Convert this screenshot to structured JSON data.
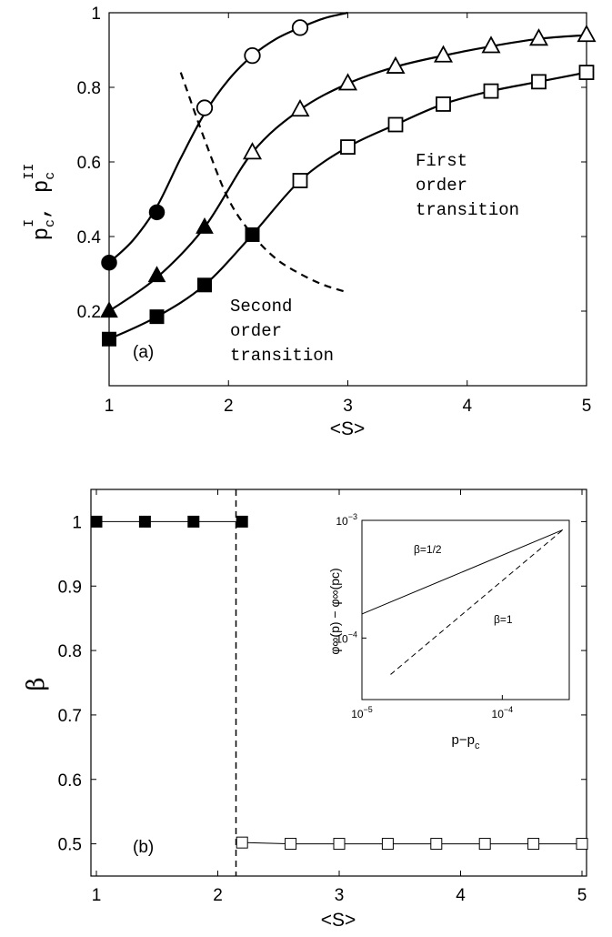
{
  "chart_data": [
    {
      "panel": "(a)",
      "type": "line",
      "xlabel": "<S>",
      "ylabel_main": "p",
      "ylabel_sub1": "c",
      "ylabel_sup1": "I",
      "ylabel_sep": ", ",
      "ylabel_sub2": "c",
      "ylabel_sup2": "II",
      "xlim": [
        1,
        5
      ],
      "ylim": [
        0,
        1
      ],
      "xticks": [
        1,
        2,
        3,
        4,
        5
      ],
      "yticks": [
        0.2,
        0.4,
        0.6,
        0.8,
        1
      ],
      "ytick_labels": [
        "0.2",
        "0.4",
        "0.6",
        "0.8",
        "1"
      ],
      "series": [
        {
          "marker": "circle",
          "curve_x": [
            1.0,
            1.2,
            1.4,
            1.6,
            1.8,
            2.0,
            2.2,
            2.4,
            2.6,
            2.8,
            3.0
          ],
          "curve_y": [
            0.33,
            0.39,
            0.48,
            0.61,
            0.73,
            0.82,
            0.885,
            0.93,
            0.96,
            0.985,
            1.0
          ],
          "filled_x": [
            1.0,
            1.4
          ],
          "filled_y": [
            0.33,
            0.465
          ],
          "open_x": [
            1.8,
            2.2,
            2.6
          ],
          "open_y": [
            0.745,
            0.885,
            0.96
          ]
        },
        {
          "marker": "triangle",
          "curve_x": [
            1.0,
            1.4,
            1.8,
            2.2,
            2.6,
            3.0,
            3.4,
            3.8,
            4.2,
            4.6,
            5.0
          ],
          "curve_y": [
            0.2,
            0.29,
            0.425,
            0.625,
            0.74,
            0.81,
            0.855,
            0.885,
            0.91,
            0.93,
            0.94
          ],
          "filled_x": [
            1.0,
            1.4,
            1.8
          ],
          "filled_y": [
            0.2,
            0.295,
            0.425
          ],
          "open_x": [
            2.2,
            2.6,
            3.0,
            3.4,
            3.8,
            4.2,
            4.6,
            5.0
          ],
          "open_y": [
            0.625,
            0.74,
            0.81,
            0.855,
            0.885,
            0.91,
            0.93,
            0.94
          ]
        },
        {
          "marker": "square",
          "curve_x": [
            1.0,
            1.4,
            1.8,
            2.2,
            2.6,
            3.0,
            3.4,
            3.8,
            4.2,
            4.6,
            5.0
          ],
          "curve_y": [
            0.125,
            0.185,
            0.27,
            0.405,
            0.55,
            0.64,
            0.7,
            0.755,
            0.79,
            0.815,
            0.84
          ],
          "filled_x": [
            1.0,
            1.4,
            1.8,
            2.2
          ],
          "filled_y": [
            0.125,
            0.185,
            0.27,
            0.405
          ],
          "open_x": [
            2.6,
            3.0,
            3.4,
            3.8,
            4.2,
            4.6,
            5.0
          ],
          "open_y": [
            0.55,
            0.64,
            0.7,
            0.755,
            0.79,
            0.815,
            0.84
          ]
        }
      ],
      "boundary": {
        "style": "dashed",
        "x": [
          1.6,
          1.8,
          2.0,
          2.2,
          2.4,
          2.6,
          2.8,
          3.0
        ],
        "y": [
          0.84,
          0.66,
          0.5,
          0.405,
          0.34,
          0.3,
          0.27,
          0.25
        ]
      },
      "annotations": {
        "panel_label": "(a)",
        "first_order": [
          "First",
          "order",
          "transition"
        ],
        "second_order": [
          "Second",
          "order",
          "transition"
        ]
      }
    },
    {
      "panel": "(b)",
      "type": "line",
      "xlabel": "<S>",
      "ylabel": "β",
      "xlim": [
        1,
        5
      ],
      "ylim": [
        0.45,
        1.05
      ],
      "xticks": [
        1,
        2,
        3,
        4,
        5
      ],
      "yticks": [
        0.5,
        0.6,
        0.7,
        0.8,
        0.9,
        1
      ],
      "ytick_labels": [
        "0.5",
        "0.6",
        "0.7",
        "0.8",
        "0.9",
        "1"
      ],
      "series": [
        {
          "marker": "filled-square",
          "x": [
            1.0,
            1.4,
            1.8,
            2.2
          ],
          "y": [
            1.0,
            1.0,
            1.0,
            1.0
          ]
        },
        {
          "marker": "open-square",
          "x": [
            2.2,
            2.6,
            3.0,
            3.4,
            3.8,
            4.2,
            4.6,
            5.0
          ],
          "y": [
            0.502,
            0.5,
            0.5,
            0.5,
            0.5,
            0.5,
            0.5,
            0.5
          ]
        }
      ],
      "transition_line_x": 2.15,
      "annotations": {
        "panel_label": "(b)"
      },
      "inset": {
        "type": "line",
        "scale": "log-log",
        "xlabel_main": "p−p",
        "xlabel_sub": "c",
        "ylabel": "φ∞(p) − φ∞(pc)",
        "xlim": [
          1e-05,
          0.0003
        ],
        "ylim": [
          3e-05,
          0.001
        ],
        "xtick_labels": [
          {
            "base": "10",
            "exp": "−5"
          },
          {
            "base": "10",
            "exp": "−4"
          }
        ],
        "ytick_labels": [
          {
            "base": "10",
            "exp": "−4"
          },
          {
            "base": "10",
            "exp": "−3"
          }
        ],
        "series": [
          {
            "name": "β=1/2",
            "style": "solid",
            "x": [
              1e-05,
              0.00027
            ],
            "y": [
              0.00016,
              0.00083
            ]
          },
          {
            "name": "β=1",
            "style": "dashed",
            "x": [
              1.6e-05,
              0.00027
            ],
            "y": [
              4.9e-05,
              0.00083
            ]
          }
        ]
      }
    }
  ]
}
